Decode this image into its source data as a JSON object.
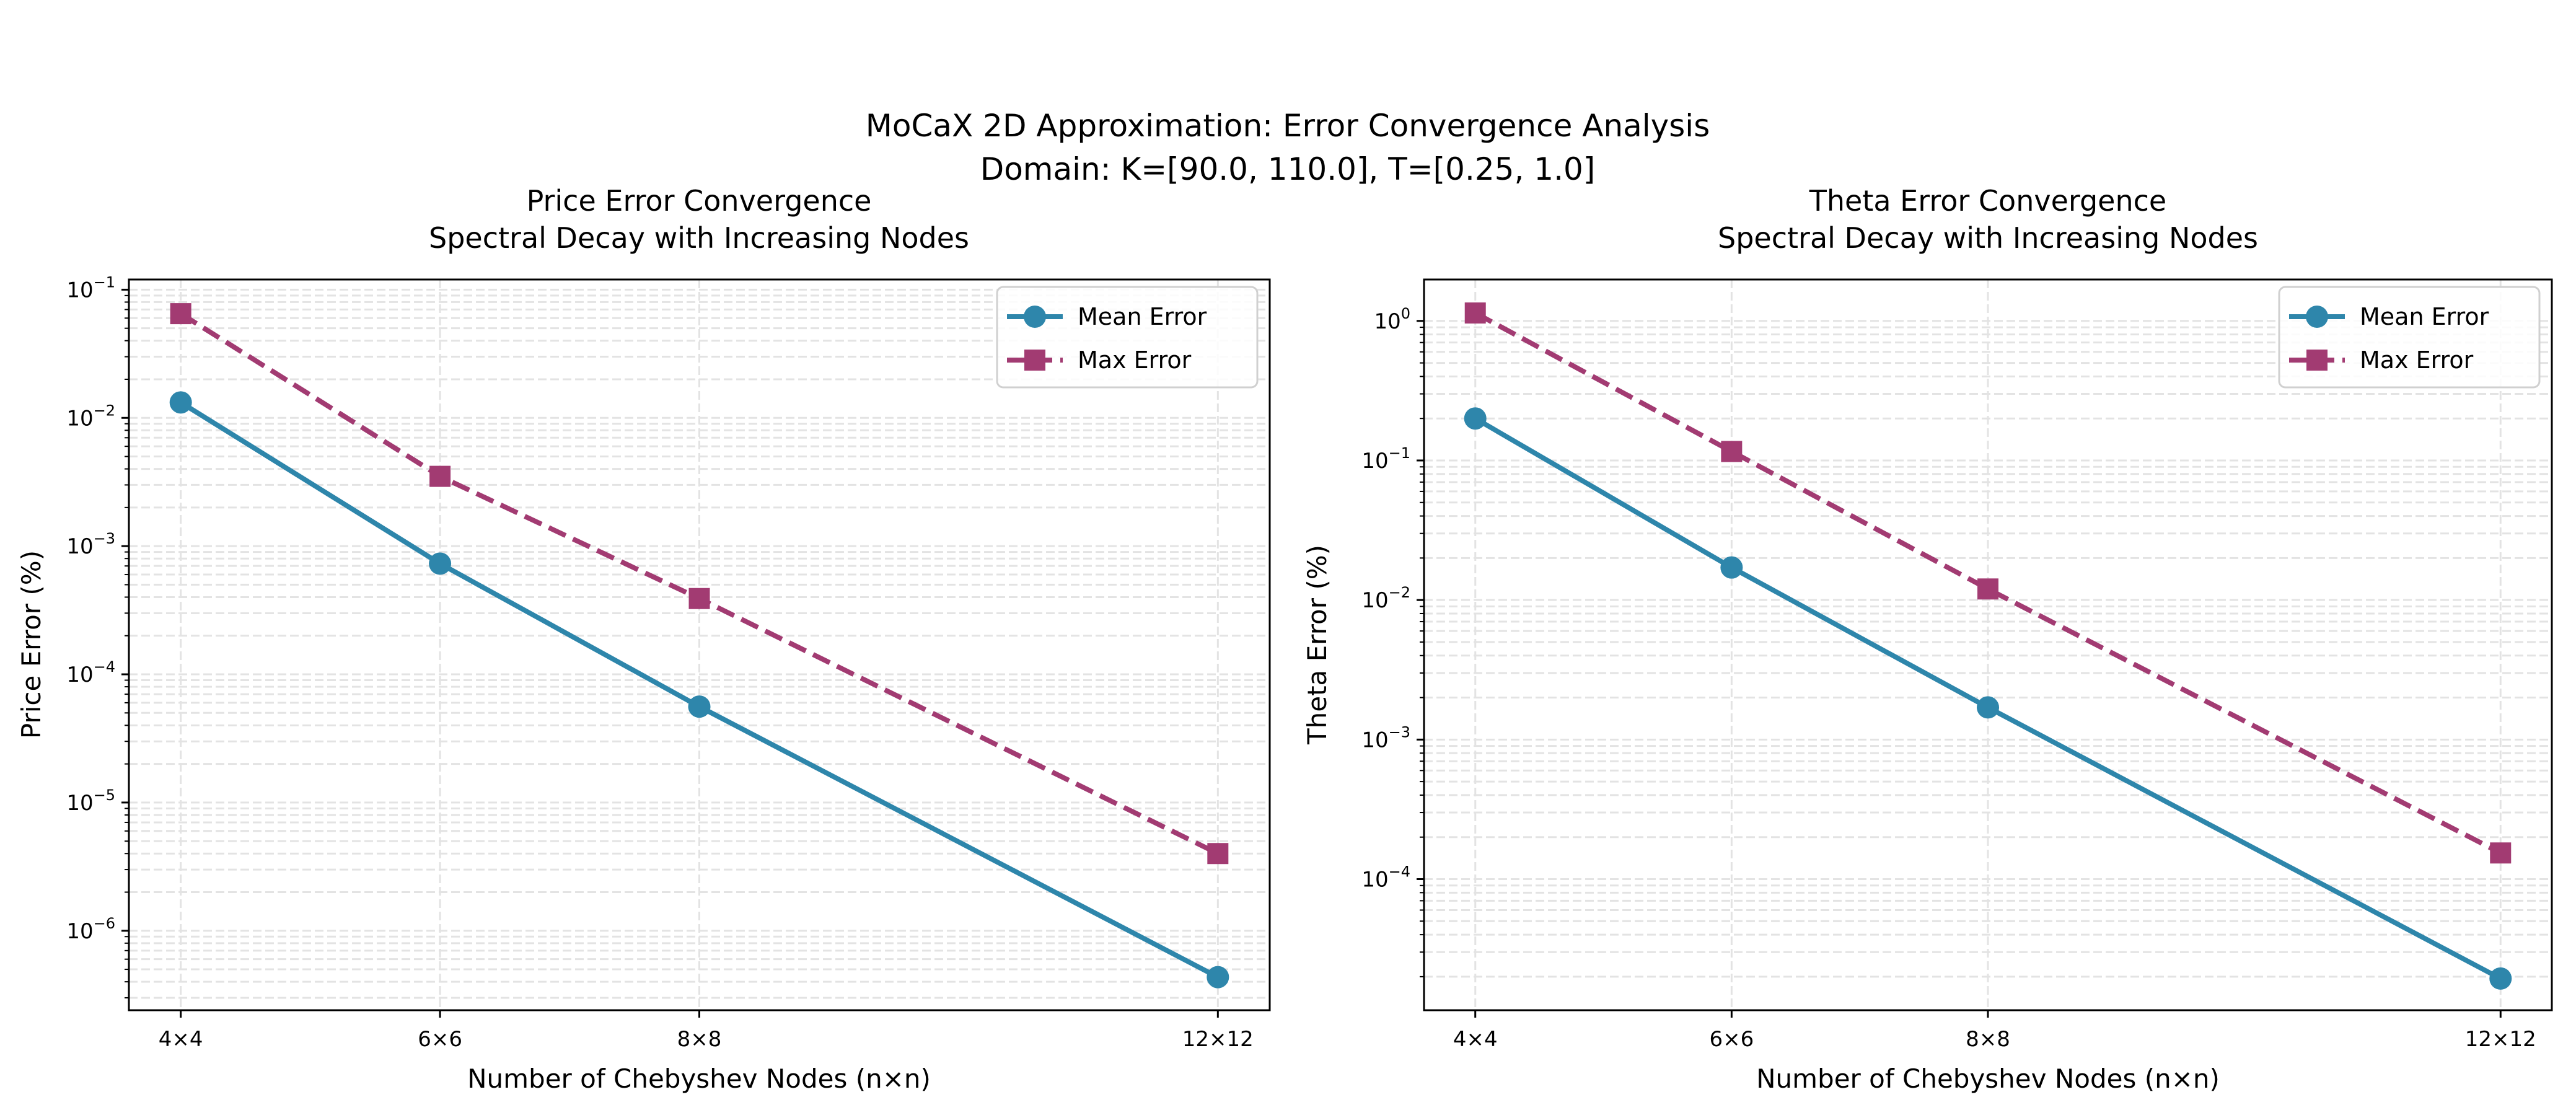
{
  "figure": {
    "suptitle_line1": "MoCaX 2D Approximation: Error Convergence Analysis",
    "suptitle_line2": "Domain: K=[90.0, 110.0], T=[0.25, 1.0]"
  },
  "colors": {
    "mean": "#2E86AB",
    "max": "#A23B72",
    "grid": "#d9d9d9"
  },
  "chart_data": [
    {
      "type": "line",
      "title_line1": "Price Error Convergence",
      "title_line2": "Spectral Decay with Increasing Nodes",
      "xlabel": "Number of Chebyshev Nodes (n×n)",
      "ylabel": "Price Error (%)",
      "x": [
        4,
        6,
        8,
        12
      ],
      "xtick_labels": [
        "4×4",
        "6×6",
        "8×8",
        "12×12"
      ],
      "xlim": [
        3.6,
        12.4
      ],
      "yscale": "log",
      "ylim": [
        2.4e-07,
        0.12
      ],
      "yticks": [
        1e-06,
        1e-05,
        0.0001,
        0.001,
        0.01,
        0.1
      ],
      "ytick_exponents": [
        "−6",
        "−5",
        "−4",
        "−3",
        "−2",
        "−1"
      ],
      "grid": true,
      "legend": "top-right",
      "series": [
        {
          "name": "Mean Error",
          "values": [
            0.0132,
            0.00073,
            5.6e-05,
            4.35e-07
          ],
          "marker": "circle",
          "linestyle": "solid"
        },
        {
          "name": "Max Error",
          "values": [
            0.065,
            0.0035,
            0.00039,
            4e-06
          ],
          "marker": "square",
          "linestyle": "dashed"
        }
      ]
    },
    {
      "type": "line",
      "title_line1": "Theta Error Convergence",
      "title_line2": "Spectral Decay with Increasing Nodes",
      "xlabel": "Number of Chebyshev Nodes (n×n)",
      "ylabel": "Theta Error (%)",
      "x": [
        4,
        6,
        8,
        12
      ],
      "xtick_labels": [
        "4×4",
        "6×6",
        "8×8",
        "12×12"
      ],
      "xlim": [
        3.6,
        12.4
      ],
      "yscale": "log",
      "ylim": [
        1.15e-05,
        1.98
      ],
      "yticks": [
        0.0001,
        0.001,
        0.01,
        0.1,
        1
      ],
      "ytick_exponents": [
        "−4",
        "−3",
        "−2",
        "−1",
        "0"
      ],
      "grid": true,
      "legend": "top-right",
      "series": [
        {
          "name": "Mean Error",
          "values": [
            0.2,
            0.0171,
            0.0017,
            1.94e-05
          ],
          "marker": "circle",
          "linestyle": "solid"
        },
        {
          "name": "Max Error",
          "values": [
            1.14,
            0.116,
            0.012,
            0.000154
          ],
          "marker": "square",
          "linestyle": "dashed"
        }
      ]
    }
  ]
}
